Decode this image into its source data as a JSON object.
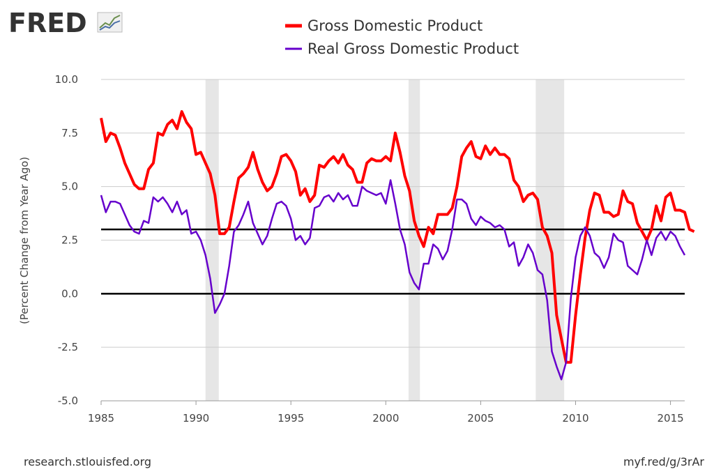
{
  "branding": {
    "logo_text": "FRED",
    "logo_icon": "chart-line-icon",
    "footer_left": "research.stlouisfed.org",
    "footer_right": "myf.red/g/3rAr"
  },
  "colors": {
    "gdp": "#ff0000",
    "real_gdp": "#6600cc",
    "recession": "#e6e6e6",
    "grid": "#cccccc",
    "reference_line": "#000000"
  },
  "chart_data": {
    "type": "line",
    "title": "",
    "xlabel": "",
    "ylabel": "(Percent Change from Year Ago)",
    "xlim": [
      1985.0,
      2015.75
    ],
    "ylim": [
      -5.0,
      10.0
    ],
    "x_ticks": [
      1985,
      1990,
      1995,
      2000,
      2005,
      2010,
      2015
    ],
    "x_tick_labels": [
      "1985",
      "1990",
      "1995",
      "2000",
      "2005",
      "2010",
      "2015"
    ],
    "y_ticks": [
      -5.0,
      -2.5,
      0.0,
      2.5,
      5.0,
      7.5,
      10.0
    ],
    "y_tick_labels": [
      "-5.0",
      "-2.5",
      "0.0",
      "2.5",
      "5.0",
      "7.5",
      "10.0"
    ],
    "grid": true,
    "legend_position": "top-center",
    "reference_lines": [
      0.0,
      3.0
    ],
    "recessions": [
      [
        1990.5,
        1991.2
      ],
      [
        2001.2,
        2001.8
      ],
      [
        2007.9,
        2009.4
      ]
    ],
    "series": [
      {
        "name": "Gross Domestic Product",
        "x_start": 1985.0,
        "x_step": 0.25,
        "values": [
          8.2,
          7.1,
          7.5,
          7.4,
          6.8,
          6.1,
          5.6,
          5.1,
          4.9,
          4.9,
          5.8,
          6.1,
          7.5,
          7.4,
          7.9,
          8.1,
          7.7,
          8.5,
          8.0,
          7.7,
          6.5,
          6.6,
          6.1,
          5.6,
          4.6,
          2.8,
          2.8,
          3.1,
          4.3,
          5.4,
          5.6,
          5.9,
          6.6,
          5.8,
          5.2,
          4.8,
          5.0,
          5.6,
          6.4,
          6.5,
          6.2,
          5.7,
          4.6,
          4.9,
          4.3,
          4.6,
          6.0,
          5.9,
          6.2,
          6.4,
          6.1,
          6.5,
          6.0,
          5.8,
          5.2,
          5.2,
          6.1,
          6.3,
          6.2,
          6.2,
          6.4,
          6.2,
          7.5,
          6.6,
          5.5,
          4.8,
          3.4,
          2.7,
          2.2,
          3.1,
          2.8,
          3.7,
          3.7,
          3.7,
          4.0,
          5.0,
          6.4,
          6.8,
          7.1,
          6.4,
          6.3,
          6.9,
          6.5,
          6.8,
          6.5,
          6.5,
          6.3,
          5.3,
          5.0,
          4.3,
          4.6,
          4.7,
          4.4,
          3.1,
          2.7,
          1.9,
          -1.0,
          -2.1,
          -3.2,
          -3.2,
          -1.0,
          0.9,
          2.6,
          3.9,
          4.7,
          4.6,
          3.8,
          3.8,
          3.6,
          3.7,
          4.8,
          4.3,
          4.2,
          3.3,
          2.9,
          2.5,
          3.0,
          4.1,
          3.4,
          4.5,
          4.7,
          3.9,
          3.9,
          3.8,
          3.0,
          2.9
        ]
      },
      {
        "name": "Real Gross Domestic Product",
        "x_start": 1985.0,
        "x_step": 0.25,
        "values": [
          4.6,
          3.8,
          4.3,
          4.3,
          4.2,
          3.7,
          3.2,
          2.9,
          2.8,
          3.4,
          3.3,
          4.5,
          4.3,
          4.5,
          4.2,
          3.8,
          4.3,
          3.7,
          3.9,
          2.8,
          2.9,
          2.5,
          1.8,
          0.7,
          -0.9,
          -0.5,
          0.0,
          1.3,
          2.9,
          3.2,
          3.7,
          4.3,
          3.3,
          2.8,
          2.3,
          2.7,
          3.5,
          4.2,
          4.3,
          4.1,
          3.5,
          2.5,
          2.7,
          2.3,
          2.6,
          4.0,
          4.1,
          4.5,
          4.6,
          4.3,
          4.7,
          4.4,
          4.6,
          4.1,
          4.1,
          5.0,
          4.8,
          4.7,
          4.6,
          4.7,
          4.2,
          5.3,
          4.2,
          3.0,
          2.3,
          1.0,
          0.5,
          0.2,
          1.4,
          1.4,
          2.3,
          2.1,
          1.6,
          2.0,
          3.0,
          4.4,
          4.4,
          4.2,
          3.5,
          3.2,
          3.6,
          3.4,
          3.3,
          3.1,
          3.2,
          3.0,
          2.2,
          2.4,
          1.3,
          1.7,
          2.3,
          1.9,
          1.1,
          0.9,
          -0.3,
          -2.7,
          -3.4,
          -4.0,
          -3.2,
          -0.2,
          1.7,
          2.7,
          3.1,
          2.7,
          1.9,
          1.7,
          1.2,
          1.7,
          2.8,
          2.5,
          2.4,
          1.3,
          1.1,
          0.9,
          1.6,
          2.5,
          1.8,
          2.6,
          2.9,
          2.5,
          2.9,
          2.7,
          2.2,
          1.8
        ]
      }
    ]
  }
}
